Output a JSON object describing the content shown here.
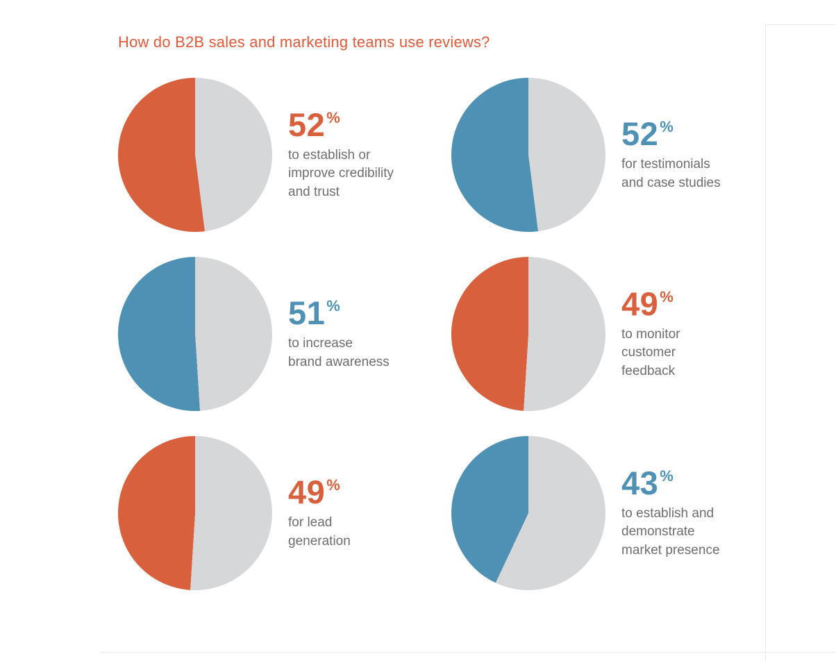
{
  "title": "How do B2B sales and marketing teams use reviews?",
  "colors": {
    "orange": "#d9603c",
    "blue": "#4e91b4",
    "gray": "#d5d7d9",
    "title": "#e0593a",
    "label_text": "#6e6e6e"
  },
  "chart_data": {
    "type": "pie",
    "title": "How do B2B sales and marketing teams use reviews?",
    "legend_position": "none",
    "items": [
      {
        "value": 52,
        "unit": "%",
        "color": "orange",
        "label": "to establish or improve credibility and trust",
        "label_lines": [
          "to establish or",
          "improve credibility",
          "and trust"
        ]
      },
      {
        "value": 52,
        "unit": "%",
        "color": "blue",
        "label": "for testimonials and case studies",
        "label_lines": [
          "for testimonials",
          "and case studies"
        ]
      },
      {
        "value": 51,
        "unit": "%",
        "color": "blue",
        "label": "to increase brand awareness",
        "label_lines": [
          "to increase",
          "brand awareness"
        ]
      },
      {
        "value": 49,
        "unit": "%",
        "color": "orange",
        "label": "to monitor customer feedback",
        "label_lines": [
          "to monitor",
          "customer",
          "feedback"
        ]
      },
      {
        "value": 49,
        "unit": "%",
        "color": "orange",
        "label": "for lead generation",
        "label_lines": [
          "for lead",
          "generation"
        ]
      },
      {
        "value": 43,
        "unit": "%",
        "color": "blue",
        "label": "to establish and demonstrate market presence",
        "label_lines": [
          "to establish and",
          "demonstrate",
          "market presence"
        ]
      }
    ]
  }
}
